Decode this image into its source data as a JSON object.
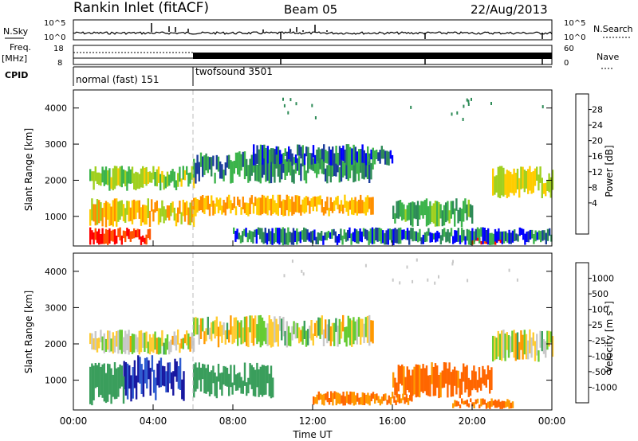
{
  "header": {
    "station_title": "Rankin Inlet (fitACF)",
    "beam": "Beam 05",
    "date": "22/Aug/2013"
  },
  "left_labels": {
    "nsky": "N.Sky",
    "freq": "Freq.",
    "mhz": "[MHz]",
    "cpid": "CPID"
  },
  "right_labels": {
    "nsearch": "N.Search",
    "nave": "Nave"
  },
  "strip_ticks": {
    "noise_top": "10^5",
    "noise_bottom": "10^0",
    "freq_top": "18",
    "freq_bottom": "8",
    "nave_top": "60",
    "nave_bottom": "0"
  },
  "cpid_modes": [
    {
      "label": "normal (fast) 151",
      "start_hour": 0,
      "end_hour": 6
    },
    {
      "label": "twofsound 3501",
      "start_hour": 6,
      "end_hour": 24
    }
  ],
  "power_colorbar": {
    "title": "Power [dB]",
    "ticks": [
      "28",
      "24",
      "20",
      "16",
      "12",
      "8",
      "4"
    ],
    "colors": [
      "#ff0000",
      "#ff5500",
      "#ff9000",
      "#ffcc00",
      "#a0d020",
      "#3cb44b",
      "#2e8b57",
      "#1c3d9c",
      "#0000ff"
    ]
  },
  "velocity_colorbar": {
    "title": "Velocity [m s-1]",
    "title_main": "Velocity [m s",
    "title_sup": "-1",
    "title_end": "]",
    "ticks": [
      "1000",
      "500",
      "100",
      "25",
      "-25",
      "-100",
      "-500",
      "-1000"
    ],
    "colors": [
      "#1818a0",
      "#2e5bd0",
      "#3a9e5c",
      "#66cc33",
      "#c8c8c8",
      "#ffcc33",
      "#ff9900",
      "#ff6600",
      "#ff0000"
    ]
  },
  "axes": {
    "ylabel": "Slant Range [km]",
    "xlabel": "Time UT",
    "y_ticks": [
      "1000",
      "2000",
      "3000",
      "4000"
    ],
    "x_ticks": [
      "00:00",
      "04:00",
      "08:00",
      "12:00",
      "16:00",
      "20:00",
      "00:00"
    ]
  },
  "chart_data": [
    {
      "type": "heatmap",
      "title": "Power",
      "x_range_hours": [
        0,
        24
      ],
      "y_range_km": [
        180,
        4500
      ],
      "y_ticks_km": [
        1000,
        2000,
        3000,
        4000
      ],
      "colorbar_range_db": [
        0,
        30
      ],
      "echo_regions": [
        {
          "t0": 0.8,
          "t1": 6.0,
          "r0": 1700,
          "r1": 2400,
          "value_db": 14
        },
        {
          "t0": 0.8,
          "t1": 6.0,
          "r0": 700,
          "r1": 1500,
          "value_db": 18
        },
        {
          "t0": 0.8,
          "t1": 3.8,
          "r0": 200,
          "r1": 700,
          "value_db": 28
        },
        {
          "t0": 6.0,
          "t1": 15.0,
          "r0": 1000,
          "r1": 1600,
          "value_db": 20
        },
        {
          "t0": 6.0,
          "t1": 15.0,
          "r0": 1900,
          "r1": 2800,
          "value_db": 8
        },
        {
          "t0": 9.0,
          "t1": 16.0,
          "r0": 2400,
          "r1": 3000,
          "value_db": 6
        },
        {
          "t0": 16.0,
          "t1": 20.0,
          "r0": 700,
          "r1": 1500,
          "value_db": 10
        },
        {
          "t0": 19.8,
          "t1": 21.5,
          "r0": 200,
          "r1": 450,
          "value_db": 28
        },
        {
          "t0": 21.0,
          "t1": 24.0,
          "r0": 1500,
          "r1": 2400,
          "value_db": 16
        },
        {
          "t0": 8.0,
          "t1": 24.0,
          "r0": 200,
          "r1": 700,
          "value_db": 6
        }
      ]
    },
    {
      "type": "heatmap",
      "title": "Velocity",
      "x_range_hours": [
        0,
        24
      ],
      "y_range_km": [
        180,
        4500
      ],
      "y_ticks_km": [
        1000,
        2000,
        3000,
        4000
      ],
      "colorbar_range_ms": [
        -1000,
        1000
      ],
      "echo_regions": [
        {
          "t0": 0.8,
          "t1": 6.0,
          "r0": 1700,
          "r1": 2400,
          "value_ms": 0
        },
        {
          "t0": 2.5,
          "t1": 5.5,
          "r0": 400,
          "r1": 1700,
          "value_ms": 1000
        },
        {
          "t0": 0.8,
          "t1": 2.5,
          "r0": 300,
          "r1": 1500,
          "value_ms": 300
        },
        {
          "t0": 6.0,
          "t1": 10.0,
          "r0": 500,
          "r1": 1500,
          "value_ms": 300
        },
        {
          "t0": 6.0,
          "t1": 15.0,
          "r0": 1900,
          "r1": 2800,
          "value_ms": 0
        },
        {
          "t0": 12.0,
          "t1": 17.0,
          "r0": 300,
          "r1": 700,
          "value_ms": -500
        },
        {
          "t0": 16.0,
          "t1": 21.0,
          "r0": 500,
          "r1": 1500,
          "value_ms": -600
        },
        {
          "t0": 19.0,
          "t1": 22.0,
          "r0": 200,
          "r1": 500,
          "value_ms": -500
        },
        {
          "t0": 21.0,
          "t1": 24.0,
          "r0": 1500,
          "r1": 2400,
          "value_ms": 0
        }
      ]
    }
  ]
}
